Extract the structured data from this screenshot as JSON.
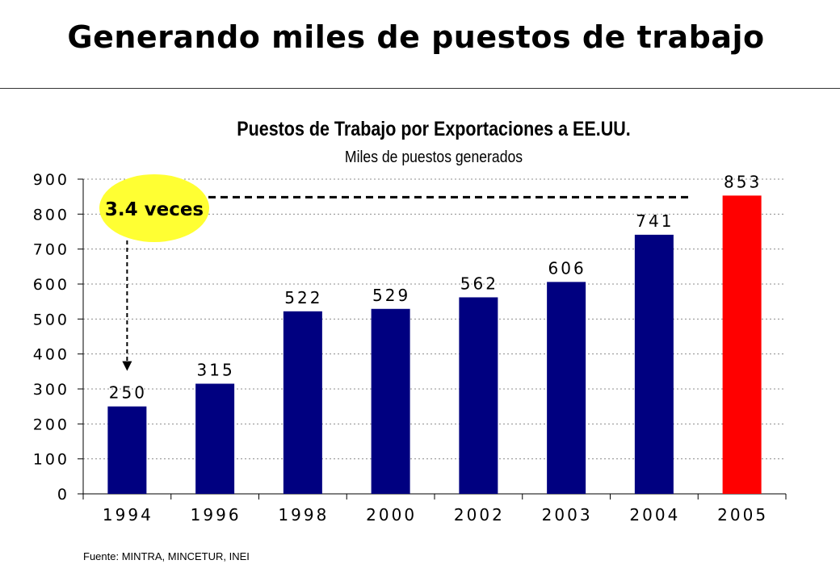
{
  "slide": {
    "title": "Generando miles de puestos de trabajo",
    "source": "Fuente: MINTRA, MINCETUR, INEI"
  },
  "chart_data": {
    "type": "bar",
    "title": "Puestos de Trabajo por Exportaciones a EE.UU.",
    "subtitle": "Miles de puestos generados",
    "categories": [
      "1994",
      "1996",
      "1998",
      "2000",
      "2002",
      "2003",
      "2004",
      "2005"
    ],
    "values": [
      250,
      315,
      522,
      529,
      562,
      606,
      741,
      853
    ],
    "data_labels": [
      "250",
      "315",
      "522",
      "529",
      "562",
      "606",
      "741",
      "853"
    ],
    "ylim": [
      0,
      900
    ],
    "yticks": [
      0,
      100,
      200,
      300,
      400,
      500,
      600,
      700,
      800,
      900
    ],
    "ytick_labels": [
      "0",
      "100",
      "200",
      "300",
      "400",
      "500",
      "600",
      "700",
      "800",
      "900"
    ],
    "xlabel": "",
    "ylabel": "",
    "grid": true,
    "colors": {
      "bar": "#000080",
      "highlight_bar": "#ff0000",
      "highlight_index": 7,
      "annotation_fill": "#ffff33"
    },
    "annotation": {
      "label": "3.4 veces",
      "from_index": 0,
      "to_index": 7
    }
  }
}
